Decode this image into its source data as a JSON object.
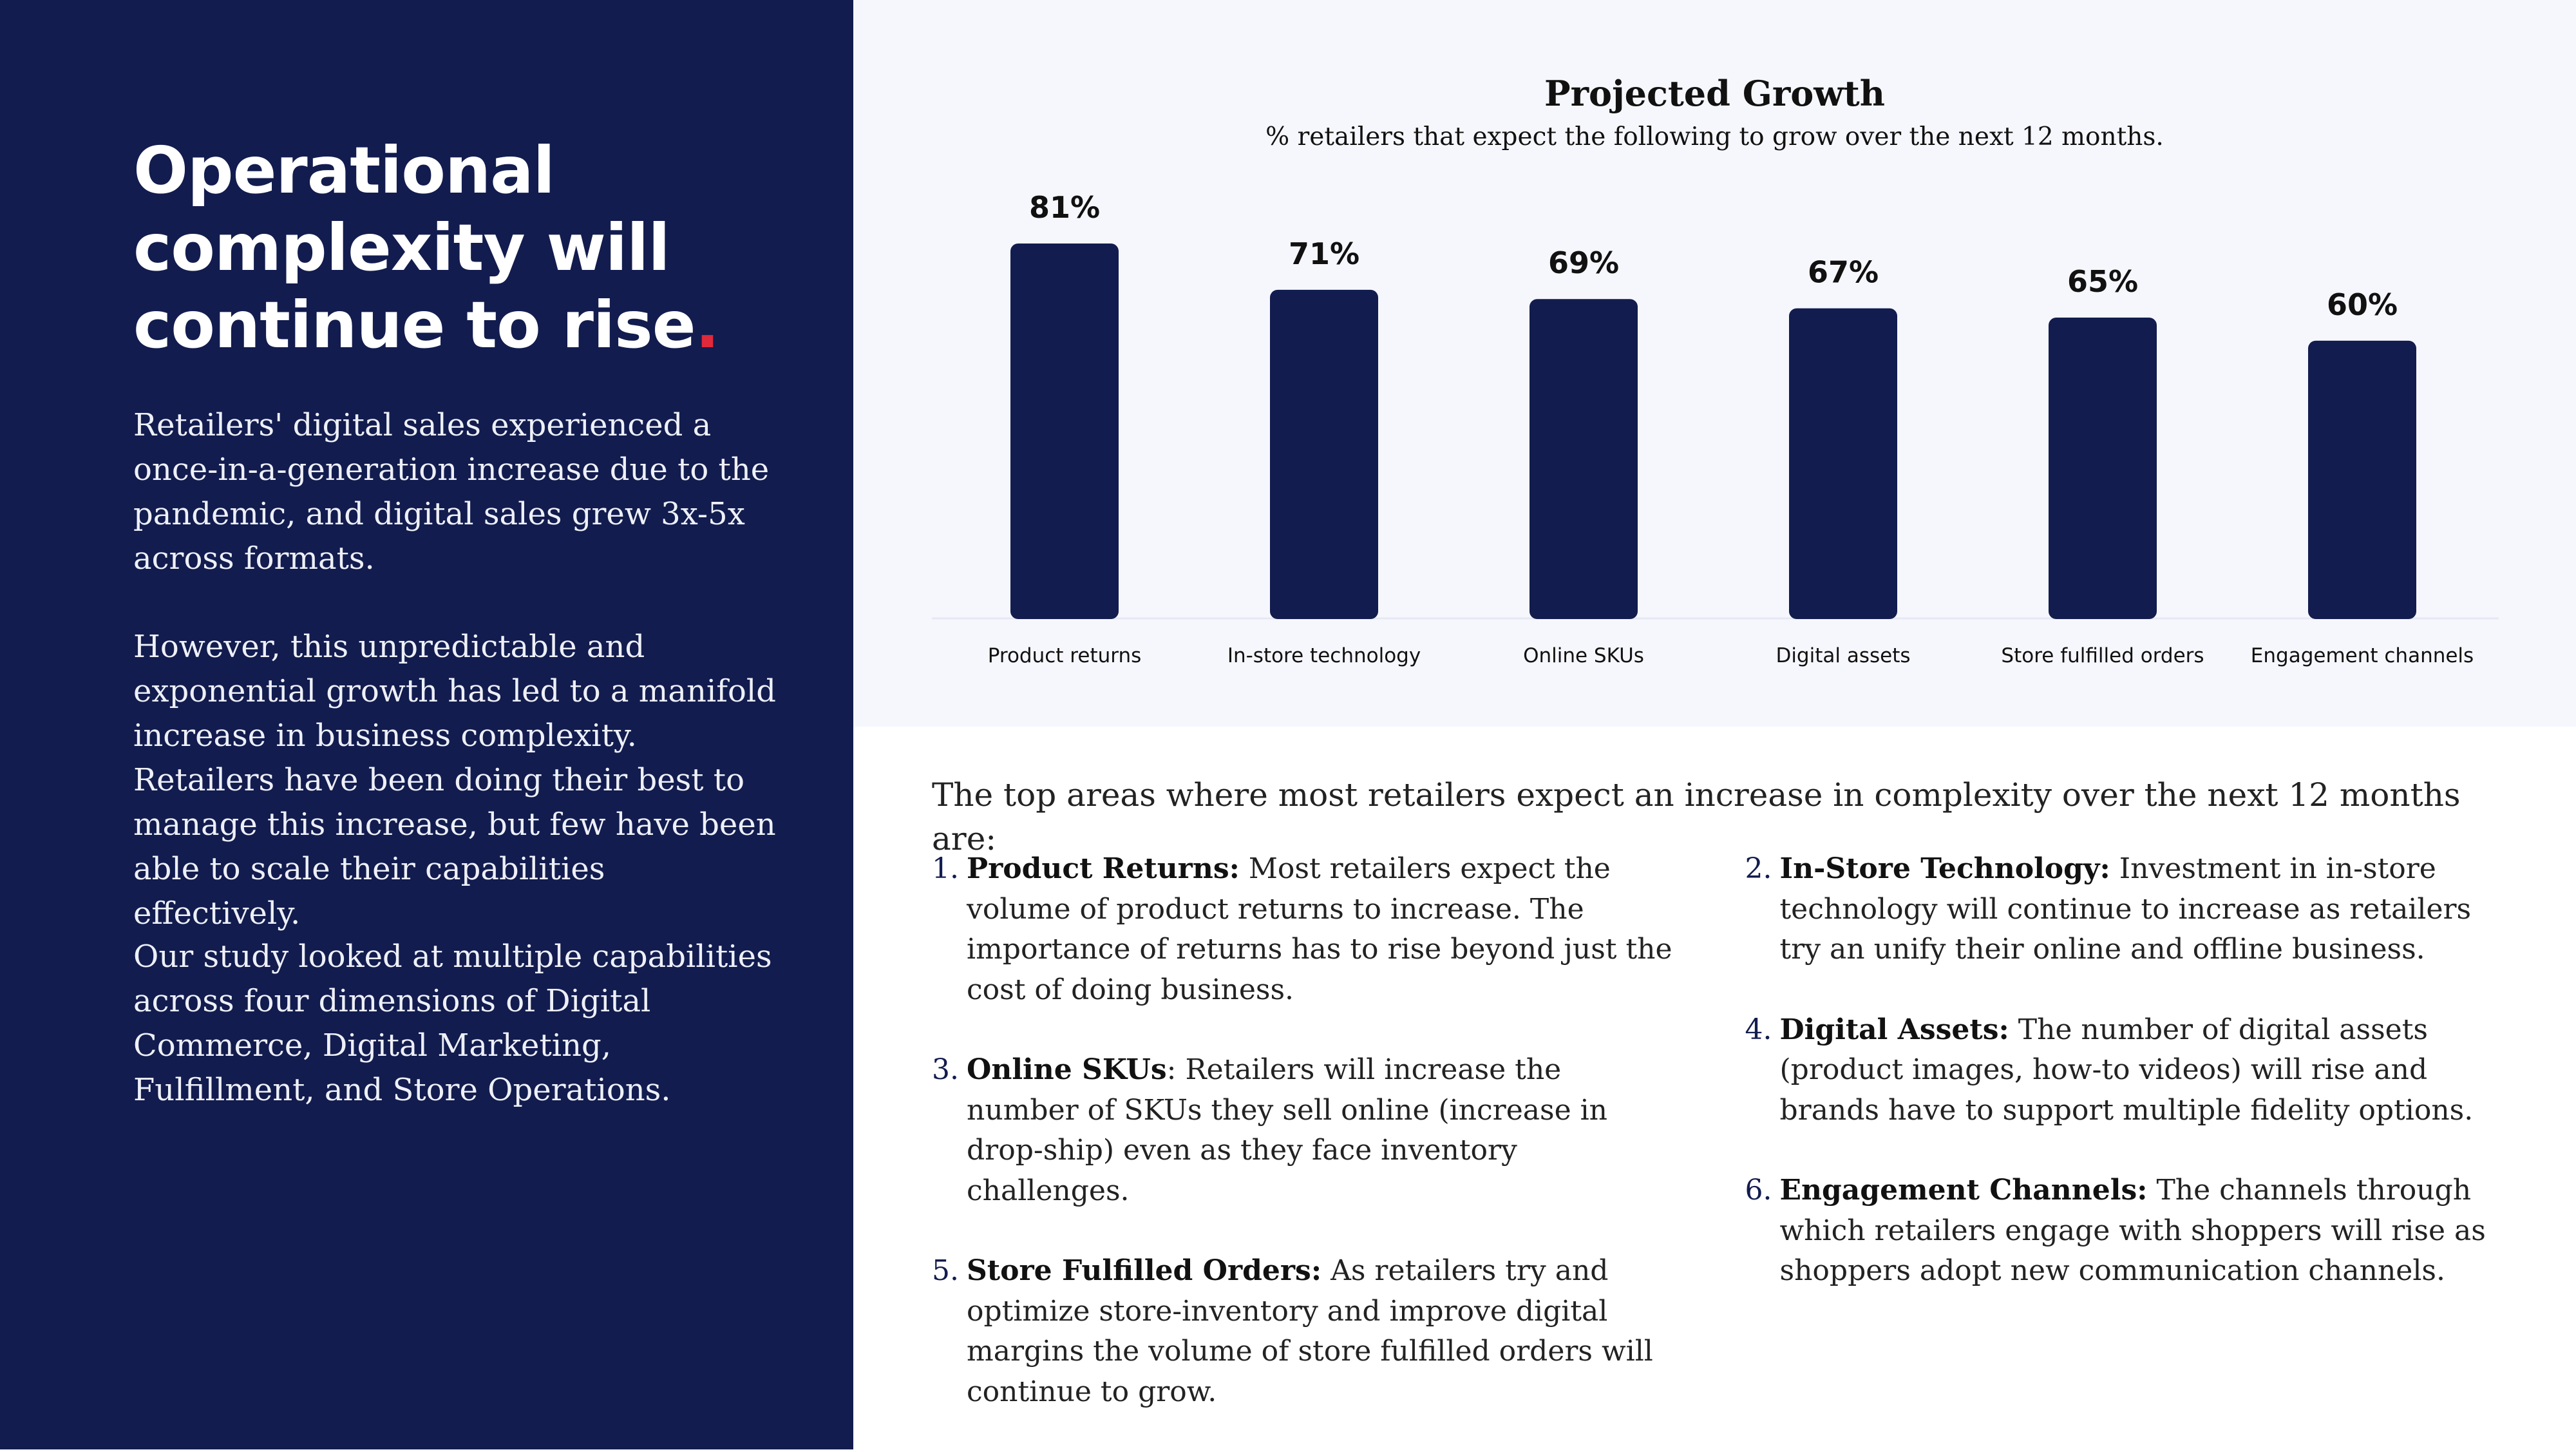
{
  "left": {
    "headline": "Operational complexity will continue to rise",
    "headline_dot": ".",
    "paragraphs": [
      "Retailers' digital sales experienced a once-in-a-generation increase due to the pandemic, and digital sales grew 3x-5x across formats.",
      "However, this unpredictable and exponential growth has led to a manifold increase in business complexity. Retailers have been doing their best to manage this increase, but few have been able to scale their capabilities effectively.",
      "Our study looked at multiple capabilities across four dimensions of Digital Commerce, Digital Marketing, Fulfillment, and Store Operations."
    ]
  },
  "chart_data": {
    "type": "bar",
    "title": "Projected Growth",
    "subtitle": "% retailers that expect the following to grow over the next 12 months.",
    "categories": [
      "Product returns",
      "In-store technology",
      "Online SKUs",
      "Digital assets",
      "Store fulfilled orders",
      "Engagement channels"
    ],
    "values": [
      81,
      71,
      69,
      67,
      65,
      60
    ],
    "data_labels": [
      "81%",
      "71%",
      "69%",
      "67%",
      "65%",
      "60%"
    ],
    "unit": "%",
    "ylim": [
      0,
      100
    ],
    "grid": false,
    "bar_color": "#121c4e"
  },
  "details": {
    "intro": "The top areas where most retailers expect an increase in complexity over the next 12 months are:",
    "items": [
      {
        "num": "1.",
        "title": "Product Returns:",
        "text": " Most retailers expect the volume of product returns to increase. The importance of returns has to rise beyond just the cost of doing business."
      },
      {
        "num": "2.",
        "title": "In-Store Technology:",
        "text": " Investment in in-store technology will continue to increase as retailers try an unify their online and offline business."
      },
      {
        "num": "3.",
        "title": "Online SKUs",
        "text": ": Retailers will increase the number of SKUs they sell online (increase in drop-ship) even as they face inventory challenges."
      },
      {
        "num": "4.",
        "title": "Digital Assets:",
        "text": "  The number of digital assets (product images, how-to videos) will rise and brands have to support multiple fidelity options."
      },
      {
        "num": "5.",
        "title": "Store Fulfilled Orders:",
        "text": " As retailers try and optimize store-inventory and improve digital margins the volume of store fulfilled orders will continue to grow."
      },
      {
        "num": "6.",
        "title": "Engagement Channels:",
        "text": " The channels through which retailers engage with shoppers will rise as shoppers adopt new communication channels."
      }
    ]
  },
  "colors": {
    "navy": "#121c4e",
    "accent_dot": "#e0293a",
    "chart_background": "#f6f7fd"
  }
}
